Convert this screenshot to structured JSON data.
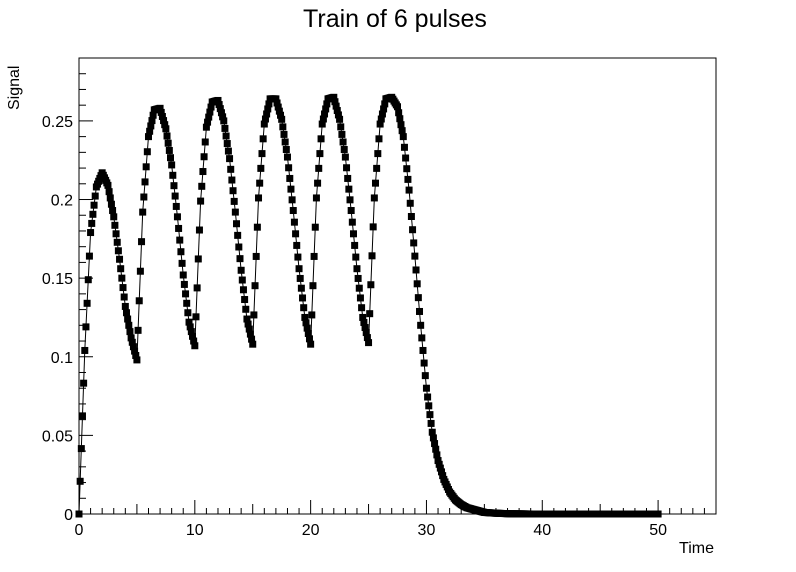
{
  "chart_data": {
    "type": "scatter",
    "title": "Train of 6 pulses",
    "xlabel": "Time",
    "ylabel": "Signal",
    "xlim": [
      0,
      55
    ],
    "ylim": [
      0,
      0.29
    ],
    "x_ticks": [
      0,
      10,
      20,
      30,
      40,
      50
    ],
    "y_ticks": [
      0,
      0.05,
      0.1,
      0.15,
      0.2,
      0.25
    ],
    "x_tick_labels": [
      "0",
      "10",
      "20",
      "30",
      "40",
      "50"
    ],
    "y_tick_labels": [
      "0",
      "0.05",
      "0.1",
      "0.15",
      "0.2",
      "0.25"
    ],
    "grid": false,
    "legend": "none",
    "marker": "square",
    "connecting_line": true,
    "color": "#000000",
    "series": [
      {
        "x": [
          0.0,
          0.5,
          1.0,
          1.5,
          2.0,
          2.5,
          3.0,
          3.5,
          4.0,
          4.5,
          5.0,
          5.5,
          6.0,
          6.5,
          7.0,
          7.5,
          8.0,
          8.5,
          9.0,
          9.5,
          10.0,
          10.5,
          11.0,
          11.5,
          12.0,
          12.5,
          13.0,
          13.5,
          14.0,
          14.5,
          15.0,
          15.5,
          16.0,
          16.5,
          17.0,
          17.5,
          18.0,
          18.5,
          19.0,
          19.5,
          20.0,
          20.5,
          21.0,
          21.5,
          22.0,
          22.5,
          23.0,
          23.5,
          24.0,
          24.5,
          25.0,
          25.5,
          26.0,
          26.5,
          27.0,
          27.5,
          28.0,
          28.5,
          29.0,
          29.5,
          30.0,
          30.5,
          31.0,
          31.5,
          32.0,
          32.5,
          33.0,
          33.5,
          34.0,
          34.5,
          35.0,
          36.0,
          37.0,
          38.0,
          39.0,
          40.0,
          41.0,
          42.0,
          43.0,
          44.0,
          45.0,
          46.0,
          47.0,
          48.0,
          49.0,
          50.0
        ],
        "y": [
          0.0,
          0.104,
          0.179,
          0.208,
          0.217,
          0.209,
          0.189,
          0.162,
          0.132,
          0.112,
          0.098,
          0.192,
          0.24,
          0.257,
          0.258,
          0.245,
          0.222,
          0.189,
          0.152,
          0.122,
          0.107,
          0.199,
          0.246,
          0.262,
          0.263,
          0.25,
          0.226,
          0.192,
          0.155,
          0.124,
          0.108,
          0.201,
          0.248,
          0.264,
          0.264,
          0.251,
          0.227,
          0.193,
          0.156,
          0.125,
          0.108,
          0.201,
          0.248,
          0.264,
          0.265,
          0.251,
          0.227,
          0.193,
          0.156,
          0.125,
          0.109,
          0.201,
          0.248,
          0.264,
          0.265,
          0.259,
          0.24,
          0.206,
          0.164,
          0.12,
          0.08,
          0.052,
          0.034,
          0.022,
          0.014,
          0.009,
          0.006,
          0.004,
          0.003,
          0.002,
          0.001,
          0.0005,
          0.0002,
          0.0001,
          0.0,
          0.0,
          0.0,
          0.0,
          0.0,
          0.0,
          0.0,
          0.0,
          0.0,
          0.0,
          0.0,
          0.0
        ]
      }
    ]
  }
}
